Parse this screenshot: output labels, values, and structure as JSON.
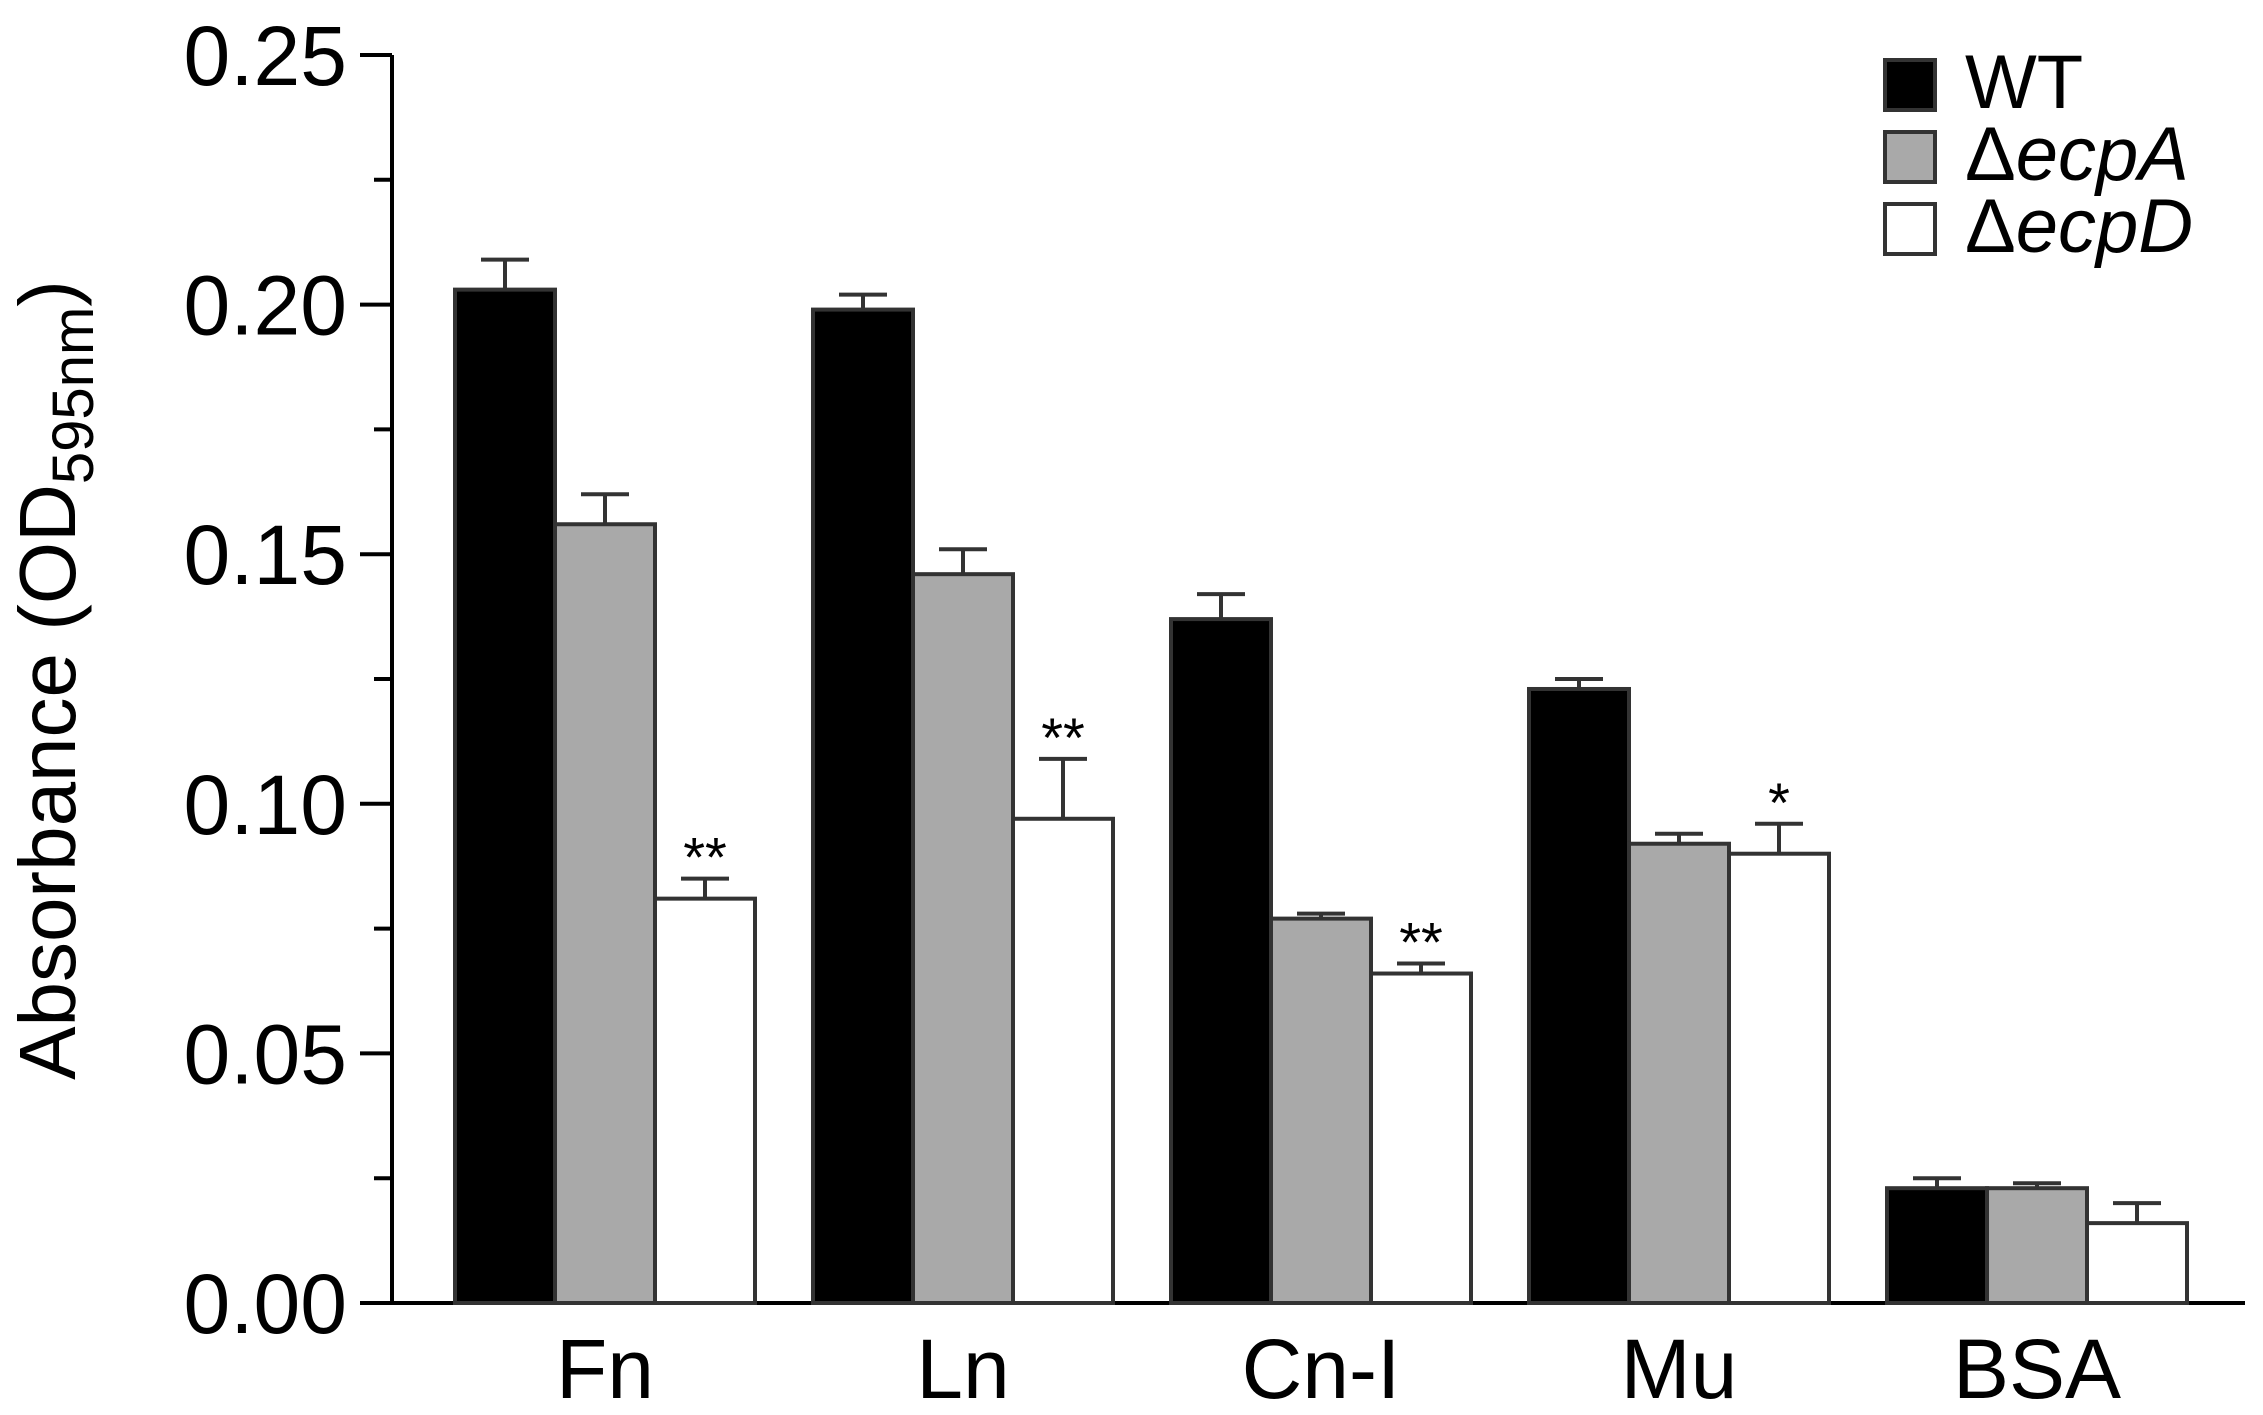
{
  "chart_data": {
    "type": "bar",
    "categories": [
      "Fn",
      "Ln",
      "Cn-I",
      "Mu",
      "BSA"
    ],
    "ylabel": "Absorbance (OD",
    "ylabel_sub": "595nm",
    "ylabel_close": ")",
    "ylim": [
      0,
      0.25
    ],
    "yticks": [
      "0.00",
      "0.05",
      "0.10",
      "0.15",
      "0.20",
      "0.25"
    ],
    "grid": false,
    "legend_position": "top-right",
    "series": [
      {
        "name": "WT",
        "delta": "",
        "italic": false,
        "color": "#000000",
        "values": [
          0.203,
          0.199,
          0.137,
          0.123,
          0.023
        ],
        "errors": [
          0.006,
          0.003,
          0.005,
          0.002,
          0.002
        ],
        "sig": [
          "",
          "",
          "",
          "",
          ""
        ]
      },
      {
        "name": "ecpA",
        "delta": "Δ",
        "italic": true,
        "color": "#a9a9a9",
        "values": [
          0.156,
          0.146,
          0.077,
          0.092,
          0.023
        ],
        "errors": [
          0.006,
          0.005,
          0.001,
          0.002,
          0.001
        ],
        "sig": [
          "",
          "",
          "",
          "",
          ""
        ]
      },
      {
        "name": "ecpD",
        "delta": "Δ",
        "italic": true,
        "color": "#ffffff",
        "values": [
          0.081,
          0.097,
          0.066,
          0.09,
          0.016
        ],
        "errors": [
          0.004,
          0.012,
          0.002,
          0.006,
          0.004
        ],
        "sig": [
          "**",
          "**",
          "**",
          "*",
          ""
        ]
      }
    ]
  }
}
